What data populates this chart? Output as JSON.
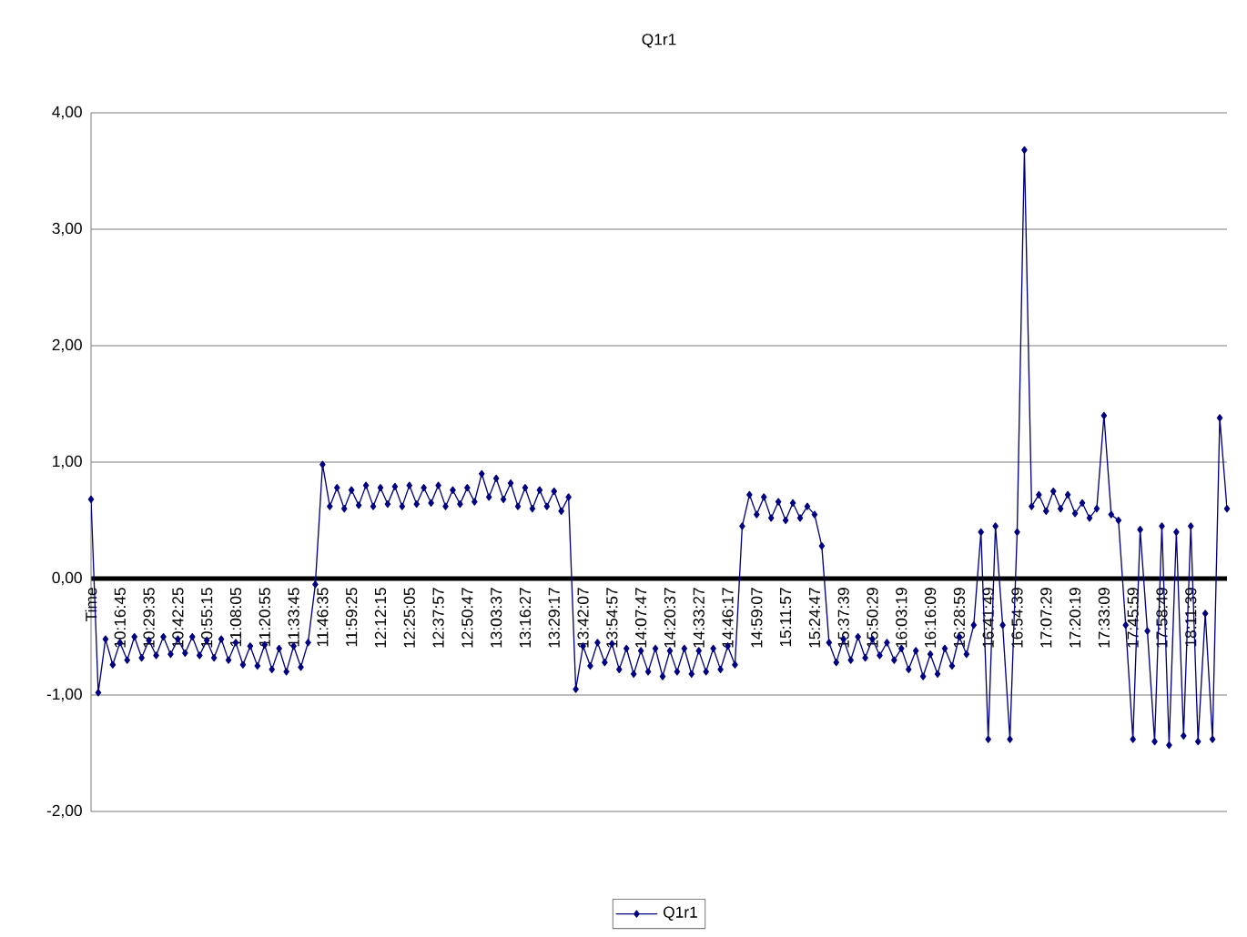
{
  "chart_data": {
    "type": "line",
    "title": "Q1r1",
    "categories": [
      "Time",
      null,
      null,
      null,
      "10:16:45",
      null,
      null,
      null,
      "10:29:35",
      null,
      null,
      null,
      "10:42:25",
      null,
      null,
      null,
      "10:55:15",
      null,
      null,
      null,
      "11:08:05",
      null,
      null,
      null,
      "11:20:55",
      null,
      null,
      null,
      "11:33:45",
      null,
      null,
      null,
      "11:46:35",
      null,
      null,
      null,
      "11:59:25",
      null,
      null,
      null,
      "12:12:15",
      null,
      null,
      null,
      "12:25:05",
      null,
      null,
      null,
      "12:37:57",
      null,
      null,
      null,
      "12:50:47",
      null,
      null,
      null,
      "13:03:37",
      null,
      null,
      null,
      "13:16:27",
      null,
      null,
      null,
      "13:29:17",
      null,
      null,
      null,
      "13:42:07",
      null,
      null,
      null,
      "13:54:57",
      null,
      null,
      null,
      "14:07:47",
      null,
      null,
      null,
      "14:20:37",
      null,
      null,
      null,
      "14:33:27",
      null,
      null,
      null,
      "14:46:17",
      null,
      null,
      null,
      "14:59:07",
      null,
      null,
      null,
      "15:11:57",
      null,
      null,
      null,
      "15:24:47",
      null,
      null,
      null,
      "15:37:39",
      null,
      null,
      null,
      "15:50:29",
      null,
      null,
      null,
      "16:03:19",
      null,
      null,
      null,
      "16:16:09",
      null,
      null,
      null,
      "16:28:59",
      null,
      null,
      null,
      "16:41:49",
      null,
      null,
      null,
      "16:54:39",
      null,
      null,
      null,
      "17:07:29",
      null,
      null,
      null,
      "17:20:19",
      null,
      null,
      null,
      "17:33:09",
      null,
      null,
      null,
      "17:45:59",
      null,
      null,
      null,
      "17:58:49",
      null,
      null,
      null,
      "18:11:39",
      null,
      null,
      null,
      null,
      null
    ],
    "series": [
      {
        "name": "Q1r1",
        "color": "#000080",
        "values": [
          0.68,
          -0.98,
          -0.52,
          -0.74,
          -0.55,
          -0.7,
          -0.5,
          -0.68,
          -0.53,
          -0.66,
          -0.5,
          -0.65,
          -0.52,
          -0.64,
          -0.5,
          -0.66,
          -0.53,
          -0.68,
          -0.52,
          -0.7,
          -0.55,
          -0.74,
          -0.58,
          -0.75,
          -0.57,
          -0.78,
          -0.6,
          -0.8,
          -0.58,
          -0.76,
          -0.55,
          -0.05,
          0.98,
          0.62,
          0.78,
          0.6,
          0.76,
          0.63,
          0.8,
          0.62,
          0.78,
          0.64,
          0.79,
          0.62,
          0.8,
          0.64,
          0.78,
          0.65,
          0.8,
          0.62,
          0.76,
          0.64,
          0.78,
          0.66,
          0.9,
          0.7,
          0.86,
          0.68,
          0.82,
          0.62,
          0.78,
          0.6,
          0.76,
          0.62,
          0.75,
          0.58,
          0.7,
          -0.95,
          -0.58,
          -0.75,
          -0.55,
          -0.72,
          -0.56,
          -0.78,
          -0.6,
          -0.82,
          -0.62,
          -0.8,
          -0.6,
          -0.84,
          -0.62,
          -0.8,
          -0.6,
          -0.82,
          -0.62,
          -0.8,
          -0.6,
          -0.78,
          -0.58,
          -0.74,
          0.45,
          0.72,
          0.55,
          0.7,
          0.52,
          0.66,
          0.5,
          0.65,
          0.52,
          0.62,
          0.55,
          0.28,
          -0.55,
          -0.72,
          -0.52,
          -0.7,
          -0.5,
          -0.68,
          -0.52,
          -0.66,
          -0.55,
          -0.7,
          -0.6,
          -0.78,
          -0.62,
          -0.84,
          -0.65,
          -0.82,
          -0.6,
          -0.75,
          -0.5,
          -0.65,
          -0.4,
          0.4,
          -1.38,
          0.45,
          -0.4,
          -1.38,
          0.4,
          3.68,
          0.62,
          0.72,
          0.58,
          0.75,
          0.6,
          0.72,
          0.56,
          0.65,
          0.52,
          0.6,
          1.4,
          0.55,
          0.5,
          -0.4,
          -1.38,
          0.42,
          -0.45,
          -1.4,
          0.45,
          -1.43,
          0.4,
          -1.35,
          0.45,
          -1.4,
          -0.3,
          -1.38,
          1.38,
          0.6
        ]
      }
    ],
    "ylim": [
      -2,
      4
    ],
    "yticks": [
      {
        "value": -2,
        "label": "-2,00"
      },
      {
        "value": -1,
        "label": "-1,00"
      },
      {
        "value": 0,
        "label": "0,00"
      },
      {
        "value": 1,
        "label": "1,00"
      },
      {
        "value": 2,
        "label": "2,00"
      },
      {
        "value": 3,
        "label": "3,00"
      },
      {
        "value": 4,
        "label": "4,00"
      }
    ],
    "grid": "y",
    "legend": "bottom",
    "marker": "diamond",
    "line_style": "solid"
  }
}
